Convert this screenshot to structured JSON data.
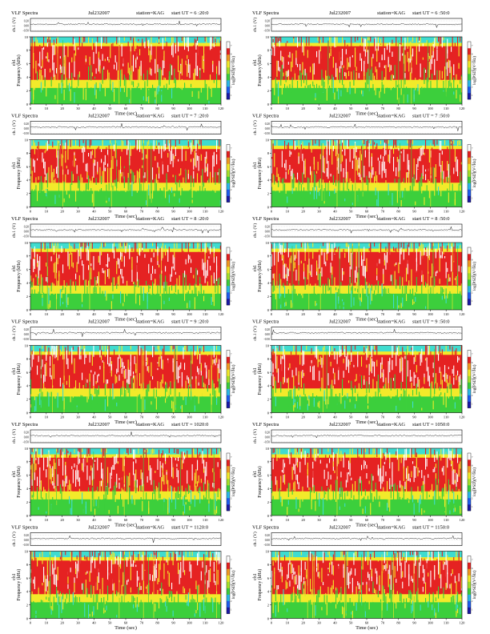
{
  "labels": {
    "title": "VLF Spectra",
    "date": "Jul232007",
    "station": "station=KAG",
    "start_prefix": "start  UT  =",
    "ch_label": "ch.1 (V)",
    "freq_label": "Frequency  (kHz)",
    "ch1_tag": "ch1",
    "time_label": "Time  (sec)",
    "colorbar_label": "log(PSD)(V²/Hz)"
  },
  "panels": [
    {
      "start": "6 :20:0"
    },
    {
      "start": "6 :50:0"
    },
    {
      "start": "7 :20:0"
    },
    {
      "start": "7 :50:0"
    },
    {
      "start": "8 :20:0"
    },
    {
      "start": "8 :50:0"
    },
    {
      "start": "9 :20:0"
    },
    {
      "start": "9 :50:0"
    },
    {
      "start": "1020:0"
    },
    {
      "start": "1050:0"
    },
    {
      "start": "1120:0"
    },
    {
      "start": "1150:0"
    }
  ],
  "colors": {
    "psd_low": "#3ccf3c",
    "psd_mid": "#f2ea2a",
    "psd_high": "#e52222",
    "psd_peak": "#ffffff",
    "cyan_band": "#3fdccf"
  },
  "chart_data": {
    "type": "heatmap",
    "layout": "6 rows x 2 columns of VLF spectrogram panels, each with a ch.1 waveform strip above",
    "x_ticks": [
      0,
      10,
      20,
      30,
      40,
      50,
      60,
      70,
      80,
      90,
      100,
      110,
      120
    ],
    "xlim": [
      0,
      120
    ],
    "y_ticks": [
      0,
      2,
      4,
      6,
      8,
      10
    ],
    "ylim": [
      0,
      10
    ],
    "waveform_ticks": [
      "0.20",
      "0.00",
      "-0.50"
    ],
    "colorbar_ticks": [
      "1",
      "2",
      "3",
      "4",
      "5",
      "6",
      "7"
    ],
    "colormap": [
      "#1a1aa8",
      "#1e5cf0",
      "#2ab8e8",
      "#3ccf3c",
      "#a6e22a",
      "#f2ea2a",
      "#f29a22",
      "#e52222",
      "#ffffff"
    ],
    "approx_profile": [
      {
        "freq_khz": [
          0,
          2
        ],
        "level": "green/yellow (low)"
      },
      {
        "freq_khz": [
          2,
          3.5
        ],
        "level": "yellow-orange"
      },
      {
        "freq_khz": [
          3.5,
          9
        ],
        "level": "red with white peaks (high)"
      },
      {
        "freq_khz": [
          9,
          10
        ],
        "level": "cyan/green band"
      }
    ]
  }
}
